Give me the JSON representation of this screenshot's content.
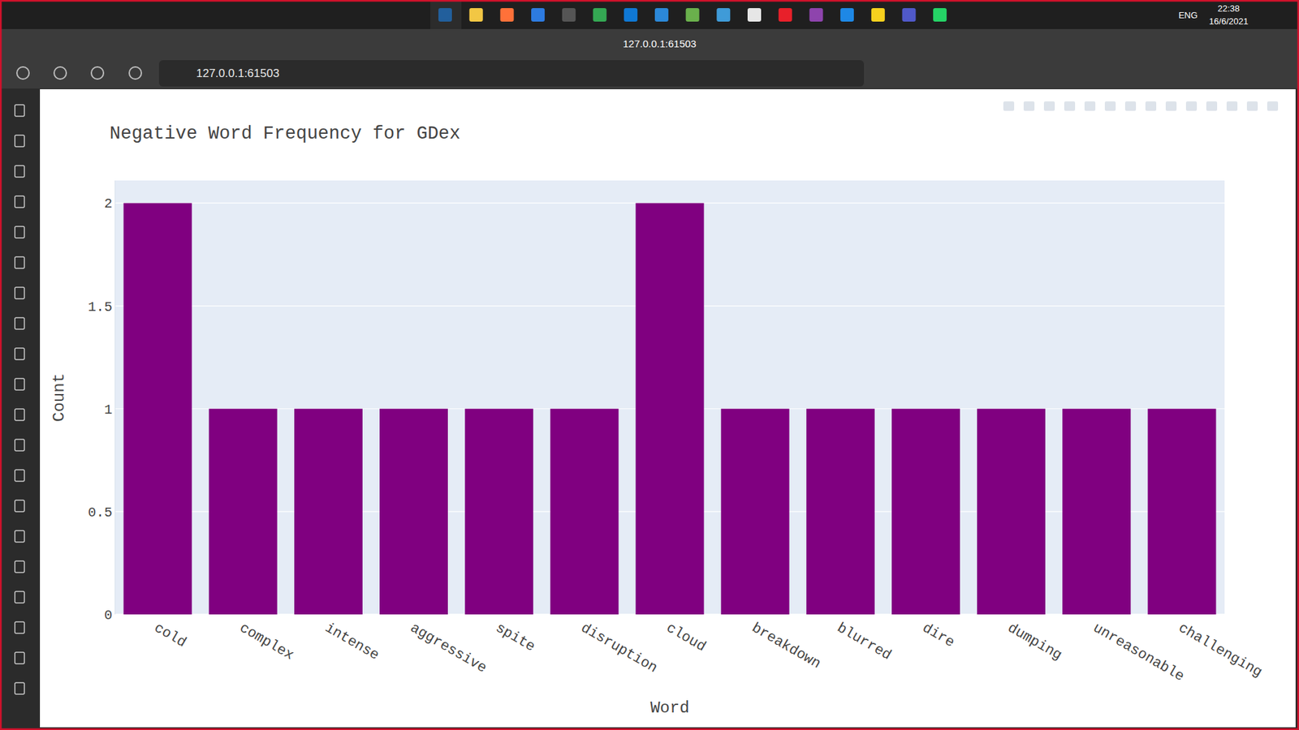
{
  "window": {
    "tab_title": "127.0.0.1:61503",
    "address": "127.0.0.1:61503",
    "language": "ENG",
    "time": "22:38",
    "date": "16/6/2021"
  },
  "chart_data": {
    "type": "bar",
    "title": "Negative Word Frequency for GDex",
    "x_label": "Word",
    "y_label": "Count",
    "categories": [
      "cold",
      "complex",
      "intense",
      "aggressive",
      "spite",
      "disruption",
      "cloud",
      "breakdown",
      "blurred",
      "dire",
      "dumping",
      "unreasonable",
      "challenging"
    ],
    "values": [
      2,
      1,
      1,
      1,
      1,
      1,
      2,
      1,
      1,
      1,
      1,
      1,
      1
    ],
    "color": "#800080",
    "ylim": [
      0,
      2.11
    ],
    "yticks": [
      0,
      0.5,
      1,
      1.5,
      2
    ],
    "grid": true
  }
}
